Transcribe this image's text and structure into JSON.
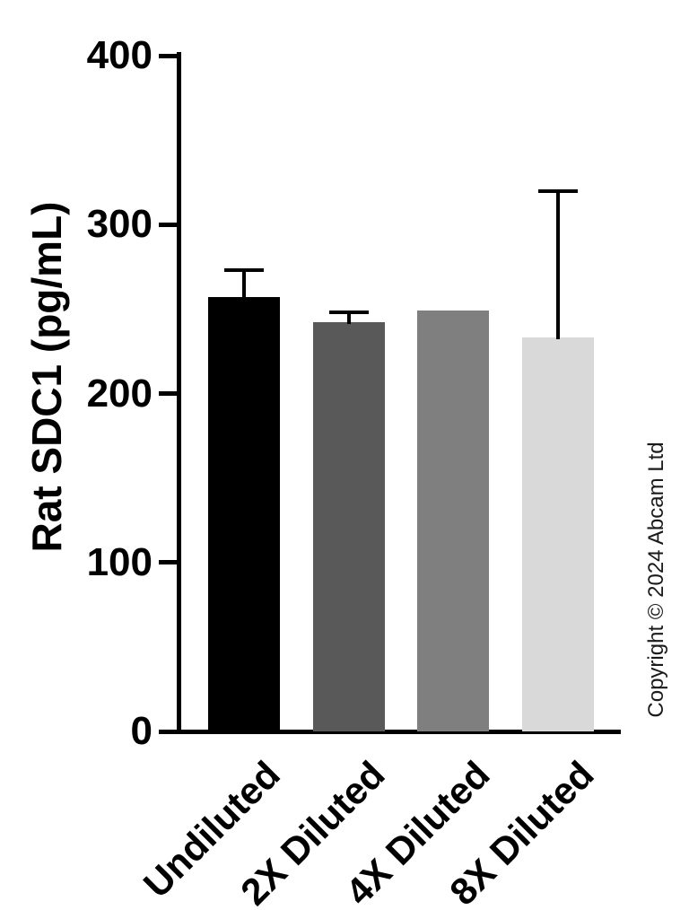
{
  "chart_data": {
    "type": "bar",
    "title": "",
    "xlabel": "",
    "ylabel": "Rat SDC1 (pg/mL)",
    "ylim": [
      0,
      400
    ],
    "yticks": [
      0,
      100,
      200,
      300,
      400
    ],
    "categories": [
      "Undiluted",
      "2X Diluted",
      "4X Diluted",
      "8X Diluted"
    ],
    "values": [
      257,
      242,
      249,
      233
    ],
    "errors_plus": [
      16,
      6,
      0,
      87
    ],
    "bar_colors": [
      "#000000",
      "#595959",
      "#7f7f7f",
      "#d9d9d9"
    ],
    "axis_color": "#000000",
    "grid": false,
    "legend": null
  },
  "copyright": "Copyright © 2024 Abcam Ltd"
}
